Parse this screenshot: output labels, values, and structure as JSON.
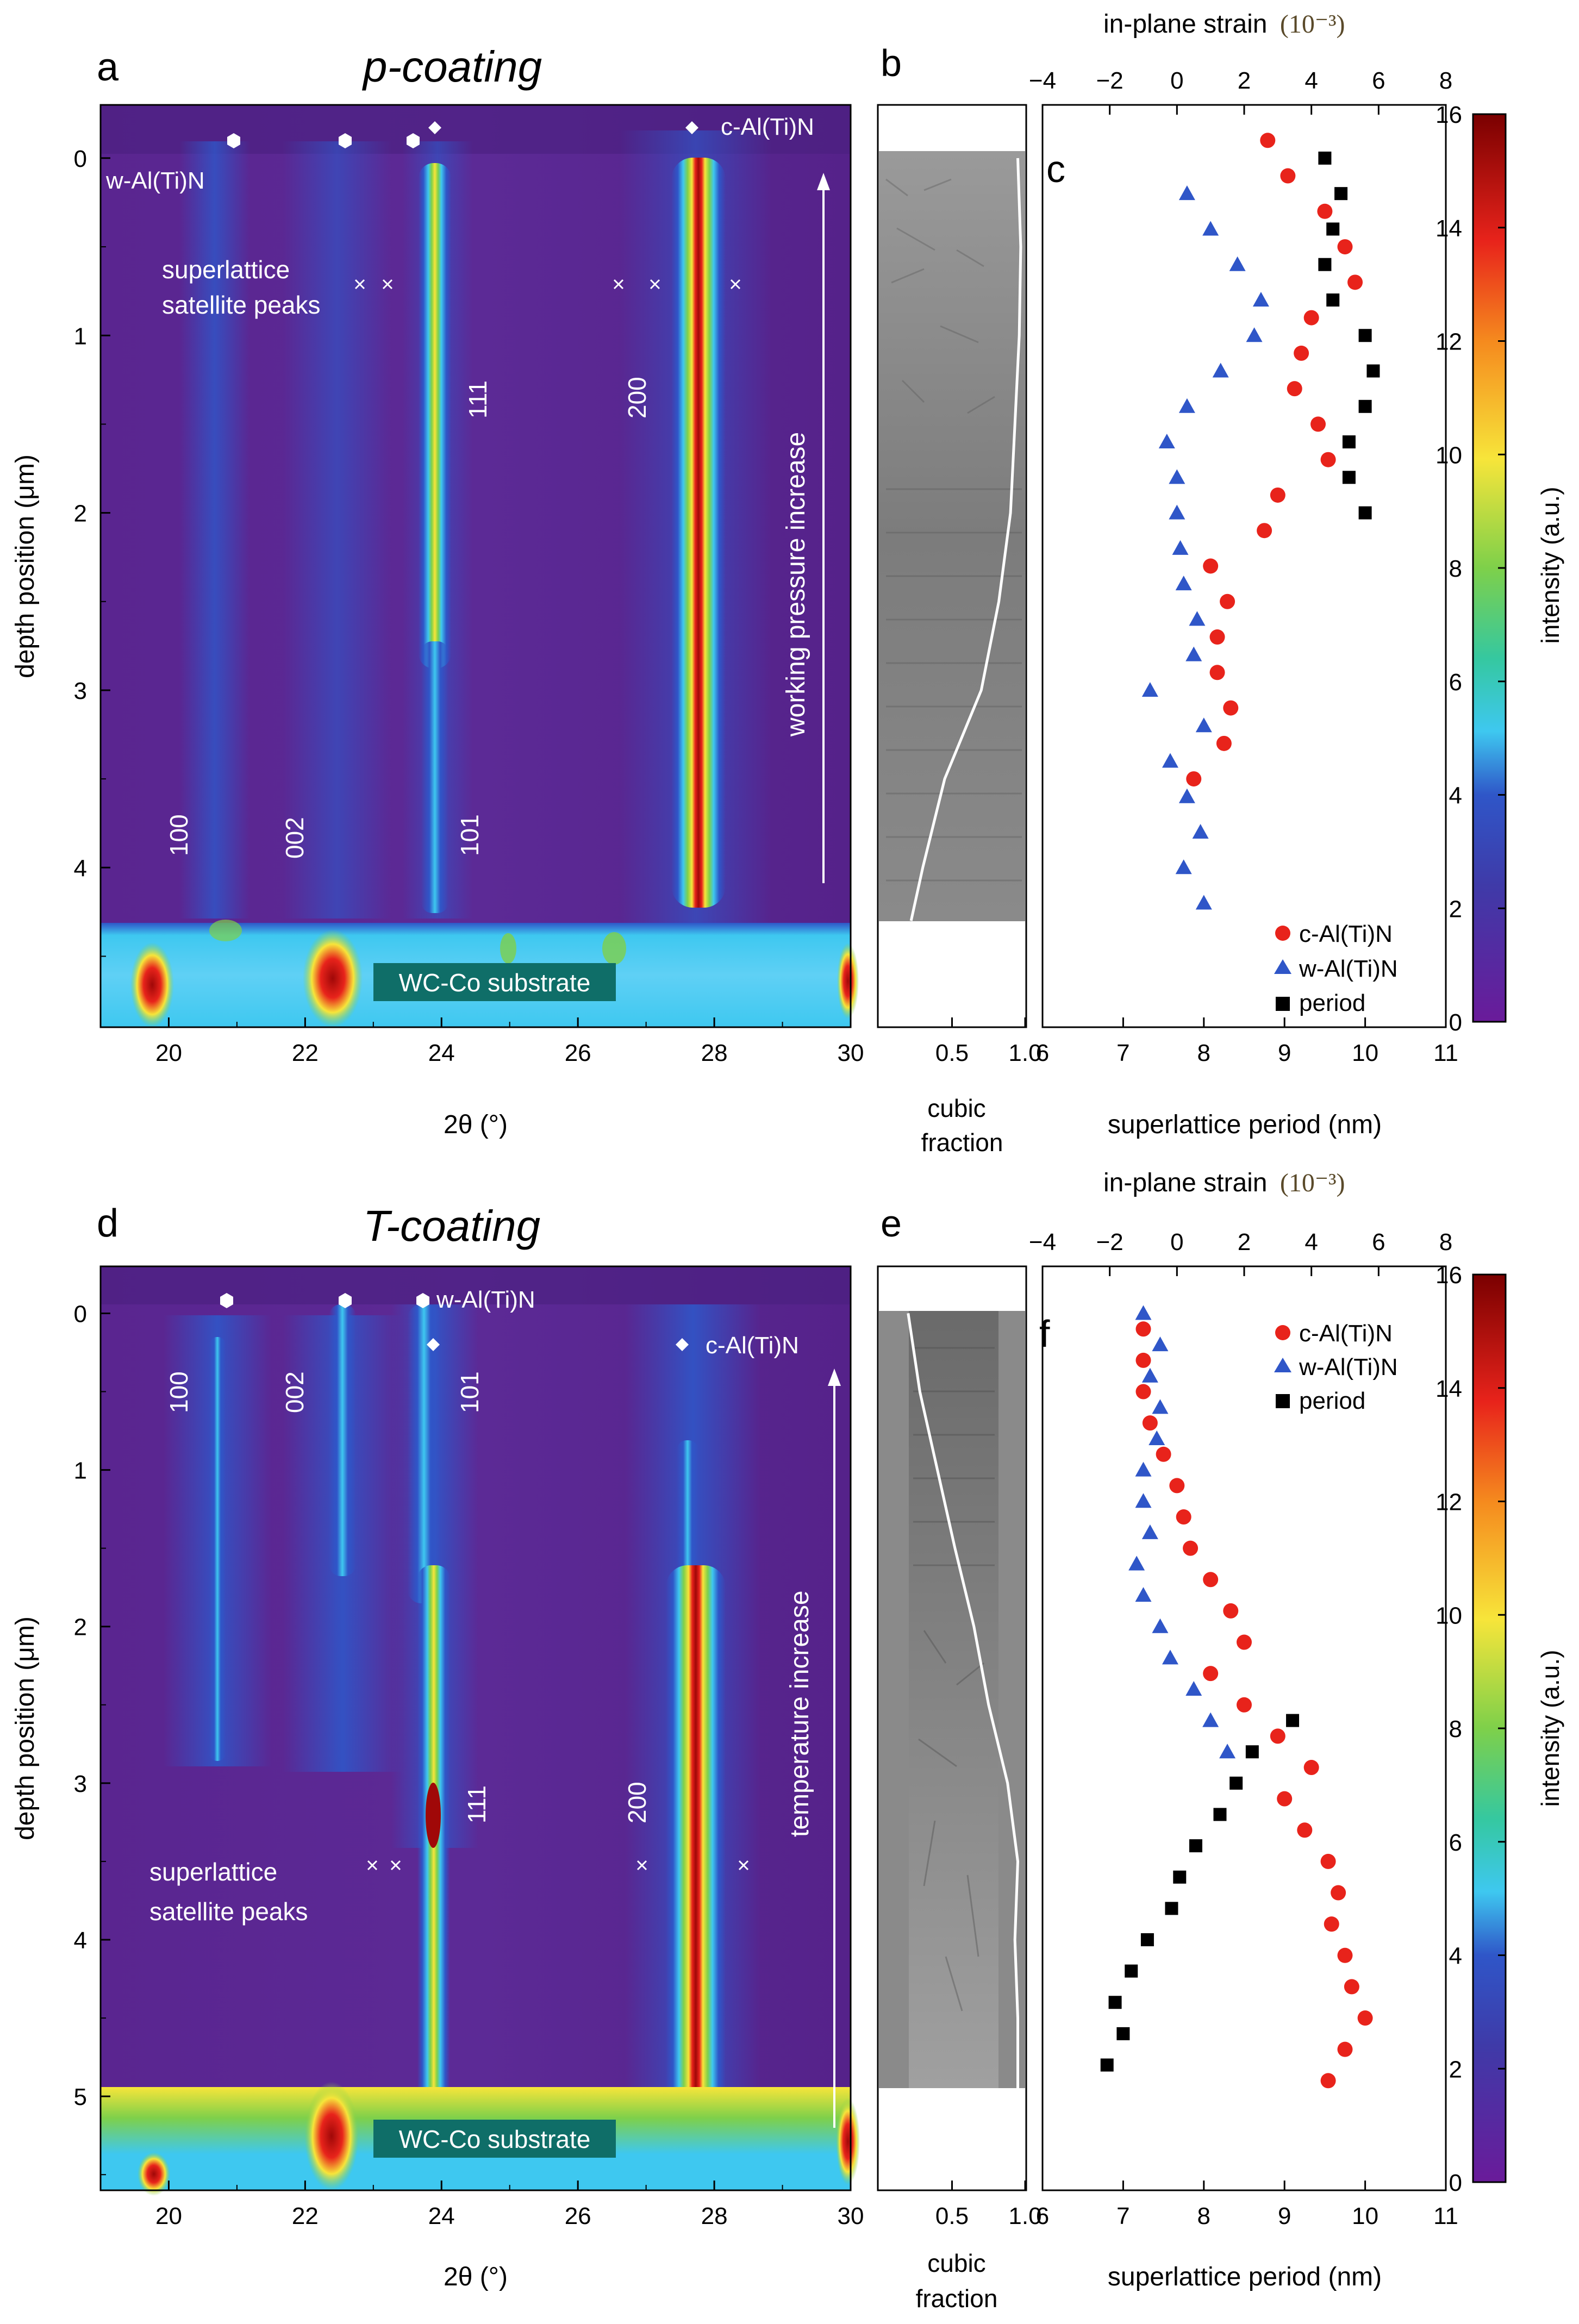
{
  "colors": {
    "map_low": "#6a1b9a",
    "map_blue": "#2f56c8",
    "map_cyan": "#3ec8f0",
    "map_green": "#7ed04a",
    "map_yellow": "#f7e53a",
    "map_red": "#e8231b",
    "map_dark": "#7a0000",
    "c_phase": "#e8231b",
    "w_phase": "#2f56c8",
    "period": "#000000"
  },
  "top": {
    "panel_letters": {
      "map": "a",
      "sem": "b",
      "profile": "c"
    },
    "title": "p-coating",
    "map": {
      "w_label": "w-Al(Ti)N",
      "c_label": "c-Al(Ti)N",
      "satellite_label_1": "superlattice",
      "satellite_label_2": "satellite peaks",
      "hkl_w": [
        "100",
        "002",
        "101"
      ],
      "hkl_c": [
        "111",
        "200"
      ],
      "arrow_label": "working pressure increase",
      "substrate_label": "WC-Co substrate",
      "xlabel": "2θ (°)",
      "ylabel": "depth position (μm)",
      "xticks": [
        "20",
        "22",
        "24",
        "26",
        "28",
        "30"
      ],
      "yticks": [
        "0",
        "1",
        "2",
        "3",
        "4"
      ]
    },
    "sem": {
      "xlabel_1": "cubic",
      "xlabel_2": "fraction",
      "xticks": [
        "0.5",
        "1.0"
      ]
    },
    "profile": {
      "top_label": "in-plane strain",
      "top_unit": "(10⁻³)",
      "top_ticks": [
        "−4",
        "−2",
        "0",
        "2",
        "4",
        "6",
        "8"
      ],
      "xlabel": "superlattice period (nm)",
      "xticks": [
        "6",
        "7",
        "8",
        "9",
        "10",
        "11"
      ],
      "legend": [
        "c-Al(Ti)N",
        "w-Al(Ti)N",
        "period"
      ]
    },
    "colorbar": {
      "label": "intensity (a.u.)",
      "ticks": [
        "0",
        "2",
        "4",
        "6",
        "8",
        "10",
        "12",
        "14",
        "16"
      ]
    }
  },
  "bottom": {
    "panel_letters": {
      "map": "d",
      "sem": "e",
      "profile": "f"
    },
    "title": "T-coating",
    "map": {
      "w_label": "w-Al(Ti)N",
      "c_label": "c-Al(Ti)N",
      "satellite_label_1": "superlattice",
      "satellite_label_2": "satellite peaks",
      "hkl_w": [
        "100",
        "002",
        "101"
      ],
      "hkl_c": [
        "111",
        "200"
      ],
      "arrow_label": "temperature increase",
      "substrate_label": "WC-Co substrate",
      "xlabel": "2θ (°)",
      "ylabel": "depth position (μm)",
      "xticks": [
        "20",
        "22",
        "24",
        "26",
        "28",
        "30"
      ],
      "yticks": [
        "0",
        "1",
        "2",
        "3",
        "4",
        "5"
      ]
    },
    "sem": {
      "xlabel_1": "cubic",
      "xlabel_2": "fraction",
      "xticks": [
        "0.5",
        "1.0"
      ]
    },
    "profile": {
      "top_label": "in-plane strain",
      "top_unit": "(10⁻³)",
      "top_ticks": [
        "−4",
        "−2",
        "0",
        "2",
        "4",
        "6",
        "8"
      ],
      "xlabel": "superlattice period (nm)",
      "xticks": [
        "6",
        "7",
        "8",
        "9",
        "10",
        "11"
      ],
      "legend": [
        "c-Al(Ti)N",
        "w-Al(Ti)N",
        "period"
      ]
    },
    "colorbar": {
      "label": "intensity (a.u.)",
      "ticks": [
        "0",
        "2",
        "4",
        "6",
        "8",
        "10",
        "12",
        "14",
        "16"
      ]
    }
  },
  "chart_data": [
    {
      "type": "heatmap",
      "panel": "a",
      "x_range": [
        19,
        30
      ],
      "y_range_um": [
        -0.3,
        4.9
      ],
      "peaks_two_theta": {
        "w_100": 20.9,
        "w_002": 22.5,
        "w_101": 23.9,
        "c_111": 23.9,
        "c_200": 27.6
      },
      "substrate_from_um": 4.3,
      "color_range": [
        0,
        16
      ]
    },
    {
      "type": "line",
      "panel": "b",
      "title": "cubic fraction",
      "depth_um": [
        0,
        0.5,
        1.0,
        1.5,
        2.0,
        2.5,
        3.0,
        3.5,
        4.0,
        4.3
      ],
      "values": [
        0.95,
        0.97,
        0.96,
        0.93,
        0.9,
        0.82,
        0.7,
        0.45,
        0.3,
        0.22
      ]
    },
    {
      "type": "scatter",
      "panel": "c",
      "x_range": [
        6,
        11
      ],
      "top_x_range_strain": [
        -4,
        8
      ],
      "series": [
        {
          "name": "c-Al(Ti)N",
          "x_axis": "strain",
          "depth_um": [
            -0.1,
            0.1,
            0.3,
            0.5,
            0.7,
            0.9,
            1.1,
            1.3,
            1.5,
            1.7,
            1.9,
            2.1,
            2.3,
            2.5,
            2.7,
            2.9,
            3.1,
            3.3,
            3.5
          ],
          "values": [
            2.7,
            3.3,
            4.4,
            5.0,
            5.3,
            4.0,
            3.7,
            3.5,
            4.2,
            4.5,
            3.0,
            2.6,
            1.0,
            1.5,
            1.2,
            1.2,
            1.6,
            1.4,
            0.5
          ]
        },
        {
          "name": "w-Al(Ti)N",
          "x_axis": "strain",
          "depth_um": [
            0.2,
            0.4,
            0.6,
            0.8,
            1.0,
            1.2,
            1.4,
            1.6,
            1.8,
            2.0,
            2.2,
            2.4,
            2.6,
            2.8,
            3.0,
            3.2,
            3.4,
            3.6,
            3.8,
            4.0,
            4.2
          ],
          "values": [
            0.3,
            1.0,
            1.8,
            2.5,
            2.3,
            1.3,
            0.3,
            -0.3,
            0.0,
            0.0,
            0.1,
            0.2,
            0.6,
            0.5,
            -0.8,
            0.8,
            -0.2,
            0.3,
            0.7,
            0.2,
            0.8
          ]
        },
        {
          "name": "period",
          "x_axis": "period",
          "depth_um": [
            0.0,
            0.2,
            0.4,
            0.6,
            0.8,
            1.0,
            1.2,
            1.4,
            1.6,
            1.8,
            2.0
          ],
          "values": [
            9.5,
            9.7,
            9.6,
            9.5,
            9.6,
            10.0,
            10.1,
            10.0,
            9.8,
            9.8,
            10.0
          ]
        }
      ]
    },
    {
      "type": "heatmap",
      "panel": "d",
      "x_range": [
        19,
        30
      ],
      "y_range_um": [
        -0.3,
        5.6
      ],
      "peaks_two_theta": {
        "w_100": 20.9,
        "w_002": 22.6,
        "w_101": 23.9,
        "c_111": 23.9,
        "c_200": 27.6
      },
      "substrate_from_um": 5.0,
      "color_range": [
        0,
        16
      ]
    },
    {
      "type": "line",
      "panel": "e",
      "title": "cubic fraction",
      "depth_um": [
        0,
        0.5,
        1.0,
        1.5,
        2.0,
        2.5,
        3.0,
        3.5,
        4.0,
        4.5,
        5.0
      ],
      "values": [
        0.2,
        0.28,
        0.4,
        0.52,
        0.65,
        0.75,
        0.88,
        0.95,
        0.93,
        0.95,
        0.95
      ]
    },
    {
      "type": "scatter",
      "panel": "f",
      "x_range": [
        6,
        11
      ],
      "top_x_range_strain": [
        -4,
        8
      ],
      "series": [
        {
          "name": "c-Al(Ti)N",
          "x_axis": "strain",
          "depth_um": [
            0.1,
            0.3,
            0.5,
            0.7,
            0.9,
            1.1,
            1.3,
            1.5,
            1.7,
            1.9,
            2.1,
            2.3,
            2.5,
            2.7,
            2.9,
            3.1,
            3.3,
            3.5,
            3.7,
            3.9,
            4.1,
            4.3,
            4.5,
            4.7,
            4.9
          ],
          "values": [
            -1.0,
            -1.0,
            -1.0,
            -0.8,
            -0.4,
            0.0,
            0.2,
            0.4,
            1.0,
            1.6,
            2.0,
            1.0,
            2.0,
            3.0,
            4.0,
            3.2,
            3.8,
            4.5,
            4.8,
            4.6,
            5.0,
            5.2,
            5.6,
            5.0,
            4.5
          ]
        },
        {
          "name": "w-Al(Ti)N",
          "x_axis": "strain",
          "depth_um": [
            0.0,
            0.2,
            0.4,
            0.6,
            0.8,
            1.0,
            1.2,
            1.4,
            1.6,
            1.8,
            2.0,
            2.2,
            2.4,
            2.6,
            2.8
          ],
          "values": [
            -1.0,
            -0.5,
            -0.8,
            -0.5,
            -0.6,
            -1.0,
            -1.0,
            -0.8,
            -1.2,
            -1.0,
            -0.5,
            -0.2,
            0.5,
            1.0,
            1.5
          ]
        },
        {
          "name": "period",
          "x_axis": "period",
          "depth_um": [
            2.6,
            2.8,
            3.0,
            3.2,
            3.4,
            3.6,
            3.8,
            4.0,
            4.2,
            4.4,
            4.6,
            4.8
          ],
          "values": [
            9.1,
            8.6,
            8.4,
            8.2,
            7.9,
            7.7,
            7.6,
            7.3,
            7.1,
            6.9,
            7.0,
            6.8
          ]
        }
      ]
    }
  ]
}
